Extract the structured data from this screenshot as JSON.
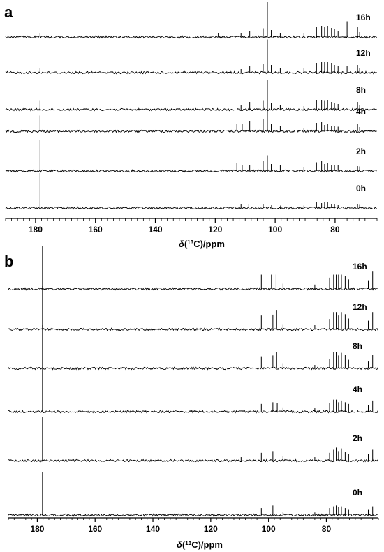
{
  "chart_data": [
    {
      "type": "line",
      "panel": "a",
      "x_reversed": true,
      "xlim": [
        190,
        66
      ],
      "x_ticks": [
        180,
        160,
        140,
        120,
        100,
        80
      ],
      "xlabel": "δ(13C)/ppm",
      "series": [
        {
          "name": "0h",
          "peaks": [
            {
              "x": 178.5,
              "h": 1.0
            },
            {
              "x": 111.4,
              "h": 0.1
            },
            {
              "x": 108.8,
              "h": 0.1
            },
            {
              "x": 104.0,
              "h": 0.12
            },
            {
              "x": 101.2,
              "h": 0.08
            },
            {
              "x": 98.2,
              "h": 0.07
            },
            {
              "x": 90.4,
              "h": 0.07
            },
            {
              "x": 86.2,
              "h": 0.18
            },
            {
              "x": 84.5,
              "h": 0.14
            },
            {
              "x": 83.5,
              "h": 0.16
            },
            {
              "x": 82.5,
              "h": 0.18
            },
            {
              "x": 81.2,
              "h": 0.12
            },
            {
              "x": 80.2,
              "h": 0.1
            },
            {
              "x": 79.0,
              "h": 0.08
            },
            {
              "x": 72.5,
              "h": 0.1
            },
            {
              "x": 71.8,
              "h": 0.09
            }
          ]
        },
        {
          "name": "2h",
          "peaks": [
            {
              "x": 178.5,
              "h": 0.9
            },
            {
              "x": 112.8,
              "h": 0.22
            },
            {
              "x": 111.0,
              "h": 0.16
            },
            {
              "x": 108.5,
              "h": 0.18
            },
            {
              "x": 104.0,
              "h": 0.28
            },
            {
              "x": 102.6,
              "h": 0.45
            },
            {
              "x": 101.3,
              "h": 0.2
            },
            {
              "x": 98.3,
              "h": 0.16
            },
            {
              "x": 90.4,
              "h": 0.1
            },
            {
              "x": 86.2,
              "h": 0.25
            },
            {
              "x": 84.5,
              "h": 0.28
            },
            {
              "x": 83.5,
              "h": 0.2
            },
            {
              "x": 82.5,
              "h": 0.22
            },
            {
              "x": 81.2,
              "h": 0.16
            },
            {
              "x": 80.2,
              "h": 0.18
            },
            {
              "x": 79.0,
              "h": 0.16
            },
            {
              "x": 72.5,
              "h": 0.14
            },
            {
              "x": 71.8,
              "h": 0.13
            }
          ]
        },
        {
          "name": "4h",
          "peaks": [
            {
              "x": 178.5,
              "h": 0.45
            },
            {
              "x": 112.8,
              "h": 0.22
            },
            {
              "x": 111.0,
              "h": 0.2
            },
            {
              "x": 108.5,
              "h": 0.3
            },
            {
              "x": 104.0,
              "h": 0.35
            },
            {
              "x": 102.6,
              "h": 0.9
            },
            {
              "x": 101.3,
              "h": 0.2
            },
            {
              "x": 98.3,
              "h": 0.15
            },
            {
              "x": 90.4,
              "h": 0.1
            },
            {
              "x": 86.2,
              "h": 0.24
            },
            {
              "x": 84.5,
              "h": 0.26
            },
            {
              "x": 83.5,
              "h": 0.18
            },
            {
              "x": 82.5,
              "h": 0.2
            },
            {
              "x": 81.2,
              "h": 0.16
            },
            {
              "x": 80.2,
              "h": 0.15
            },
            {
              "x": 79.0,
              "h": 0.13
            },
            {
              "x": 72.5,
              "h": 0.2
            },
            {
              "x": 71.8,
              "h": 0.12
            }
          ]
        },
        {
          "name": "8h",
          "peaks": [
            {
              "x": 178.5,
              "h": 0.25
            },
            {
              "x": 111.4,
              "h": 0.12
            },
            {
              "x": 108.5,
              "h": 0.22
            },
            {
              "x": 104.0,
              "h": 0.25
            },
            {
              "x": 102.6,
              "h": 0.85
            },
            {
              "x": 101.3,
              "h": 0.2
            },
            {
              "x": 98.3,
              "h": 0.14
            },
            {
              "x": 90.4,
              "h": 0.1
            },
            {
              "x": 86.2,
              "h": 0.26
            },
            {
              "x": 84.5,
              "h": 0.28
            },
            {
              "x": 83.5,
              "h": 0.25
            },
            {
              "x": 82.5,
              "h": 0.28
            },
            {
              "x": 81.2,
              "h": 0.22
            },
            {
              "x": 80.2,
              "h": 0.2
            },
            {
              "x": 79.0,
              "h": 0.16
            },
            {
              "x": 72.5,
              "h": 0.22
            },
            {
              "x": 71.8,
              "h": 0.12
            }
          ]
        },
        {
          "name": "12h",
          "peaks": [
            {
              "x": 178.5,
              "h": 0.12
            },
            {
              "x": 111.4,
              "h": 0.1
            },
            {
              "x": 108.5,
              "h": 0.2
            },
            {
              "x": 104.0,
              "h": 0.25
            },
            {
              "x": 102.6,
              "h": 0.95
            },
            {
              "x": 101.3,
              "h": 0.22
            },
            {
              "x": 98.3,
              "h": 0.12
            },
            {
              "x": 90.4,
              "h": 0.12
            },
            {
              "x": 86.2,
              "h": 0.28
            },
            {
              "x": 84.5,
              "h": 0.3
            },
            {
              "x": 83.5,
              "h": 0.3
            },
            {
              "x": 82.5,
              "h": 0.3
            },
            {
              "x": 81.2,
              "h": 0.28
            },
            {
              "x": 80.2,
              "h": 0.22
            },
            {
              "x": 79.0,
              "h": 0.18
            },
            {
              "x": 76.0,
              "h": 0.2
            },
            {
              "x": 72.5,
              "h": 0.22
            },
            {
              "x": 71.8,
              "h": 0.14
            }
          ]
        },
        {
          "name": "16h",
          "peaks": [
            {
              "x": 178.5,
              "h": 0.1
            },
            {
              "x": 119.0,
              "h": 0.1
            },
            {
              "x": 111.4,
              "h": 0.1
            },
            {
              "x": 108.5,
              "h": 0.18
            },
            {
              "x": 104.0,
              "h": 0.25
            },
            {
              "x": 102.6,
              "h": 1.0
            },
            {
              "x": 101.3,
              "h": 0.2
            },
            {
              "x": 98.3,
              "h": 0.12
            },
            {
              "x": 90.4,
              "h": 0.12
            },
            {
              "x": 86.2,
              "h": 0.28
            },
            {
              "x": 84.5,
              "h": 0.32
            },
            {
              "x": 83.5,
              "h": 0.3
            },
            {
              "x": 82.5,
              "h": 0.32
            },
            {
              "x": 81.2,
              "h": 0.26
            },
            {
              "x": 80.2,
              "h": 0.22
            },
            {
              "x": 79.0,
              "h": 0.18
            },
            {
              "x": 76.0,
              "h": 0.45
            },
            {
              "x": 72.5,
              "h": 0.3
            },
            {
              "x": 71.8,
              "h": 0.14
            }
          ]
        }
      ]
    },
    {
      "type": "line",
      "panel": "b",
      "x_reversed": true,
      "xlim": [
        190,
        62
      ],
      "x_ticks": [
        180,
        160,
        140,
        120,
        100,
        80
      ],
      "xlabel": "δ(13C)/ppm",
      "series": [
        {
          "name": "0h",
          "peaks": [
            {
              "x": 178.2,
              "h": 1.0
            },
            {
              "x": 106.8,
              "h": 0.1
            },
            {
              "x": 102.5,
              "h": 0.16
            },
            {
              "x": 98.5,
              "h": 0.22
            },
            {
              "x": 95.0,
              "h": 0.08
            },
            {
              "x": 84.0,
              "h": 0.06
            },
            {
              "x": 78.9,
              "h": 0.16
            },
            {
              "x": 77.5,
              "h": 0.2
            },
            {
              "x": 76.6,
              "h": 0.22
            },
            {
              "x": 75.8,
              "h": 0.18
            },
            {
              "x": 74.8,
              "h": 0.2
            },
            {
              "x": 73.5,
              "h": 0.16
            },
            {
              "x": 72.3,
              "h": 0.12
            },
            {
              "x": 65.5,
              "h": 0.12
            },
            {
              "x": 64.0,
              "h": 0.2
            }
          ]
        },
        {
          "name": "2h",
          "peaks": [
            {
              "x": 178.2,
              "h": 1.0
            },
            {
              "x": 109.5,
              "h": 0.08
            },
            {
              "x": 106.8,
              "h": 0.1
            },
            {
              "x": 102.5,
              "h": 0.18
            },
            {
              "x": 98.5,
              "h": 0.22
            },
            {
              "x": 95.0,
              "h": 0.1
            },
            {
              "x": 84.0,
              "h": 0.08
            },
            {
              "x": 78.9,
              "h": 0.18
            },
            {
              "x": 77.5,
              "h": 0.25
            },
            {
              "x": 76.6,
              "h": 0.3
            },
            {
              "x": 75.8,
              "h": 0.22
            },
            {
              "x": 74.8,
              "h": 0.28
            },
            {
              "x": 73.5,
              "h": 0.2
            },
            {
              "x": 72.3,
              "h": 0.15
            },
            {
              "x": 65.5,
              "h": 0.15
            },
            {
              "x": 64.0,
              "h": 0.25
            }
          ]
        },
        {
          "name": "4h",
          "peaks": [
            {
              "x": 178.2,
              "h": 1.0
            },
            {
              "x": 106.8,
              "h": 0.1
            },
            {
              "x": 102.5,
              "h": 0.18
            },
            {
              "x": 98.5,
              "h": 0.22
            },
            {
              "x": 97.0,
              "h": 0.2
            },
            {
              "x": 95.0,
              "h": 0.1
            },
            {
              "x": 84.0,
              "h": 0.08
            },
            {
              "x": 78.9,
              "h": 0.2
            },
            {
              "x": 77.5,
              "h": 0.28
            },
            {
              "x": 76.6,
              "h": 0.28
            },
            {
              "x": 75.8,
              "h": 0.22
            },
            {
              "x": 74.8,
              "h": 0.26
            },
            {
              "x": 73.5,
              "h": 0.22
            },
            {
              "x": 72.3,
              "h": 0.18
            },
            {
              "x": 65.5,
              "h": 0.16
            },
            {
              "x": 64.0,
              "h": 0.26
            }
          ]
        },
        {
          "name": "8h",
          "peaks": [
            {
              "x": 178.2,
              "h": 1.0
            },
            {
              "x": 106.8,
              "h": 0.1
            },
            {
              "x": 102.5,
              "h": 0.28
            },
            {
              "x": 98.5,
              "h": 0.3
            },
            {
              "x": 97.2,
              "h": 0.38
            },
            {
              "x": 95.0,
              "h": 0.12
            },
            {
              "x": 84.0,
              "h": 0.08
            },
            {
              "x": 78.9,
              "h": 0.22
            },
            {
              "x": 77.5,
              "h": 0.38
            },
            {
              "x": 76.6,
              "h": 0.38
            },
            {
              "x": 75.8,
              "h": 0.3
            },
            {
              "x": 74.8,
              "h": 0.36
            },
            {
              "x": 73.5,
              "h": 0.32
            },
            {
              "x": 72.3,
              "h": 0.2
            },
            {
              "x": 65.5,
              "h": 0.16
            },
            {
              "x": 64.0,
              "h": 0.32
            }
          ]
        },
        {
          "name": "12h",
          "peaks": [
            {
              "x": 178.2,
              "h": 1.0
            },
            {
              "x": 106.8,
              "h": 0.12
            },
            {
              "x": 102.5,
              "h": 0.32
            },
            {
              "x": 98.5,
              "h": 0.34
            },
            {
              "x": 97.2,
              "h": 0.45
            },
            {
              "x": 95.0,
              "h": 0.12
            },
            {
              "x": 84.0,
              "h": 0.1
            },
            {
              "x": 78.9,
              "h": 0.24
            },
            {
              "x": 77.5,
              "h": 0.4
            },
            {
              "x": 76.6,
              "h": 0.4
            },
            {
              "x": 75.8,
              "h": 0.32
            },
            {
              "x": 74.8,
              "h": 0.4
            },
            {
              "x": 73.5,
              "h": 0.35
            },
            {
              "x": 72.3,
              "h": 0.25
            },
            {
              "x": 65.5,
              "h": 0.2
            },
            {
              "x": 64.0,
              "h": 0.4
            }
          ]
        },
        {
          "name": "16h",
          "peaks": [
            {
              "x": 178.2,
              "h": 1.0
            },
            {
              "x": 106.8,
              "h": 0.12
            },
            {
              "x": 102.5,
              "h": 0.33
            },
            {
              "x": 99.0,
              "h": 0.33
            },
            {
              "x": 97.4,
              "h": 0.33
            },
            {
              "x": 95.0,
              "h": 0.12
            },
            {
              "x": 84.0,
              "h": 0.1
            },
            {
              "x": 78.9,
              "h": 0.26
            },
            {
              "x": 77.5,
              "h": 0.33
            },
            {
              "x": 76.6,
              "h": 0.33
            },
            {
              "x": 75.8,
              "h": 0.33
            },
            {
              "x": 74.8,
              "h": 0.33
            },
            {
              "x": 73.5,
              "h": 0.3
            },
            {
              "x": 72.3,
              "h": 0.22
            },
            {
              "x": 65.5,
              "h": 0.2
            },
            {
              "x": 64.0,
              "h": 0.4
            }
          ]
        }
      ]
    }
  ],
  "panel_a": {
    "letter": "a",
    "xlabel_delta": "δ",
    "xlabel_open": "(",
    "xlabel_sup": "13",
    "xlabel_close": "C)/ppm"
  },
  "panel_b": {
    "letter": "b",
    "xlabel_delta": "δ",
    "xlabel_open": "(",
    "xlabel_sup": "13",
    "xlabel_close": "C)/ppm"
  }
}
